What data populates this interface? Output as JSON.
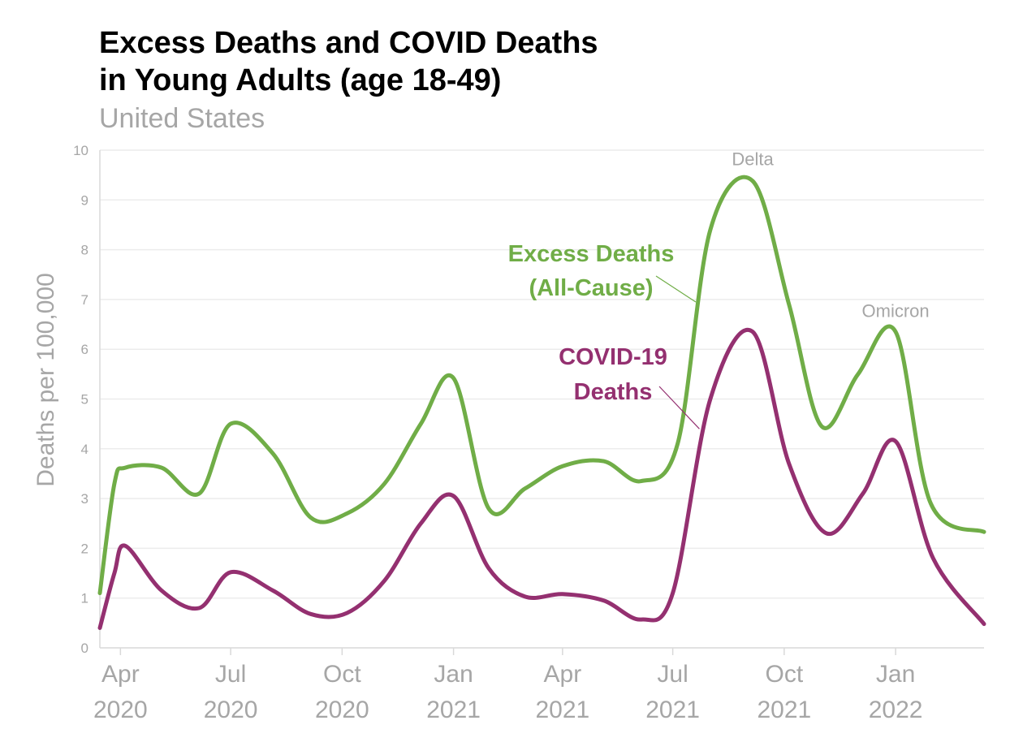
{
  "header": {
    "title_line1": "Excess Deaths and COVID Deaths",
    "title_line2": "in Young Adults (age 18-49)",
    "subtitle": "United States"
  },
  "chart_data": {
    "type": "line",
    "ylabel": "Deaths per 100,000",
    "xlabel": "",
    "ylim": [
      0,
      10
    ],
    "yticks": [
      0,
      1,
      2,
      3,
      4,
      5,
      6,
      7,
      8,
      9,
      10
    ],
    "xlim": [
      "2020-03-15",
      "2022-03-15"
    ],
    "xticks": [
      {
        "date": "2020-04-01",
        "line1": "Apr",
        "line2": "2020"
      },
      {
        "date": "2020-07-01",
        "line1": "Jul",
        "line2": "2020"
      },
      {
        "date": "2020-10-01",
        "line1": "Oct",
        "line2": "2020"
      },
      {
        "date": "2021-01-01",
        "line1": "Jan",
        "line2": "2021"
      },
      {
        "date": "2021-04-01",
        "line1": "Apr",
        "line2": "2021"
      },
      {
        "date": "2021-07-01",
        "line1": "Jul",
        "line2": "2021"
      },
      {
        "date": "2021-10-01",
        "line1": "Oct",
        "line2": "2021"
      },
      {
        "date": "2022-01-01",
        "line1": "Jan",
        "line2": "2022"
      }
    ],
    "grid": true,
    "series": [
      {
        "name": "Excess Deaths (All-Cause)",
        "label_line1": "Excess Deaths",
        "label_line2": "(All-Cause)",
        "color": "#70ad47",
        "points": [
          [
            "2020-03-15",
            1.1
          ],
          [
            "2020-03-27",
            3.3
          ],
          [
            "2020-04-05",
            3.62
          ],
          [
            "2020-05-05",
            3.62
          ],
          [
            "2020-06-05",
            3.1
          ],
          [
            "2020-07-01",
            4.5
          ],
          [
            "2020-08-05",
            3.9
          ],
          [
            "2020-09-05",
            2.62
          ],
          [
            "2020-10-05",
            2.7
          ],
          [
            "2020-11-05",
            3.3
          ],
          [
            "2020-12-05",
            4.5
          ],
          [
            "2021-01-01",
            5.42
          ],
          [
            "2021-01-30",
            2.8
          ],
          [
            "2021-03-01",
            3.2
          ],
          [
            "2021-04-01",
            3.65
          ],
          [
            "2021-05-05",
            3.75
          ],
          [
            "2021-06-05",
            3.35
          ],
          [
            "2021-07-05",
            4.1
          ],
          [
            "2021-08-01",
            8.4
          ],
          [
            "2021-09-05",
            9.38
          ],
          [
            "2021-10-05",
            6.9
          ],
          [
            "2021-11-01",
            4.45
          ],
          [
            "2021-12-01",
            5.5
          ],
          [
            "2022-01-01",
            6.35
          ],
          [
            "2022-01-30",
            2.9
          ],
          [
            "2022-03-15",
            2.33
          ]
        ]
      },
      {
        "name": "COVID-19 Deaths",
        "label_line1": "COVID-19",
        "label_line2": "Deaths",
        "color": "#943070",
        "points": [
          [
            "2020-03-15",
            0.4
          ],
          [
            "2020-03-27",
            1.5
          ],
          [
            "2020-04-05",
            2.05
          ],
          [
            "2020-05-05",
            1.15
          ],
          [
            "2020-06-05",
            0.8
          ],
          [
            "2020-07-01",
            1.52
          ],
          [
            "2020-08-05",
            1.15
          ],
          [
            "2020-09-05",
            0.68
          ],
          [
            "2020-10-05",
            0.7
          ],
          [
            "2020-11-05",
            1.35
          ],
          [
            "2020-12-05",
            2.5
          ],
          [
            "2021-01-01",
            3.05
          ],
          [
            "2021-01-30",
            1.6
          ],
          [
            "2021-03-01",
            1.03
          ],
          [
            "2021-04-01",
            1.08
          ],
          [
            "2021-05-05",
            0.95
          ],
          [
            "2021-06-05",
            0.57
          ],
          [
            "2021-07-01",
            1.1
          ],
          [
            "2021-08-01",
            5.0
          ],
          [
            "2021-09-05",
            6.35
          ],
          [
            "2021-10-05",
            3.7
          ],
          [
            "2021-11-05",
            2.3
          ],
          [
            "2021-12-05",
            3.1
          ],
          [
            "2022-01-01",
            4.15
          ],
          [
            "2022-02-01",
            1.8
          ],
          [
            "2022-03-15",
            0.48
          ]
        ]
      }
    ],
    "annotations": [
      {
        "text": "Delta",
        "date": "2021-09-05",
        "y": 9.7
      },
      {
        "text": "Omicron",
        "date": "2022-01-01",
        "y": 6.65
      }
    ],
    "series_label_pointers": [
      {
        "series": 0,
        "date": "2021-07-20",
        "y": 6.95
      },
      {
        "series": 1,
        "date": "2021-07-23",
        "y": 4.4
      }
    ],
    "colors": {
      "axis": "#d9d9d9",
      "grid": "#ececec",
      "tick_text": "#a6a6a6",
      "annotation": "#a6a6a6"
    }
  }
}
